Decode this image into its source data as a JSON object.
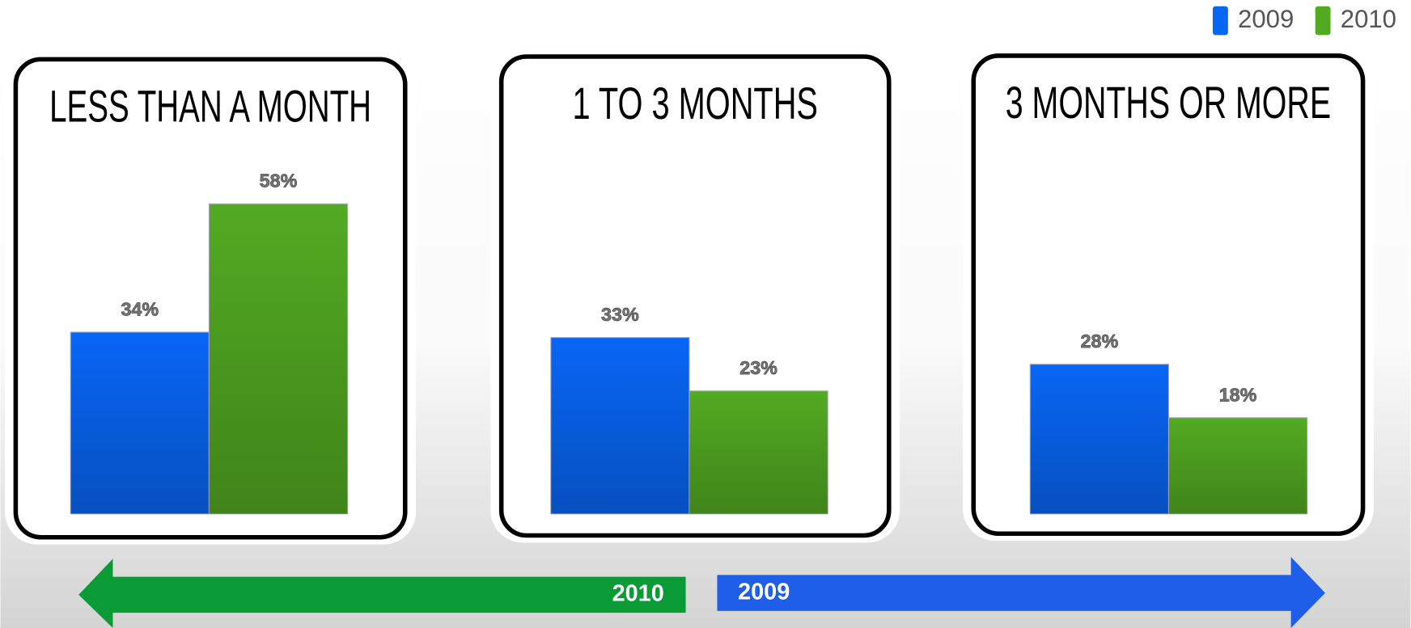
{
  "chart_data": {
    "type": "bar",
    "categories": [
      "LESS THAN A MONTH",
      "1 TO 3 MONTHS",
      "3 MONTHS OR MORE"
    ],
    "series": [
      {
        "name": "2009",
        "color": "#0866f5",
        "values": [
          34,
          33,
          28
        ],
        "value_labels": [
          "34%",
          "33%",
          "28%"
        ]
      },
      {
        "name": "2010",
        "color": "#52aa22",
        "values": [
          58,
          23,
          18
        ],
        "value_labels": [
          "58%",
          "23%",
          "18%"
        ]
      }
    ],
    "annotations": [
      "2010",
      "2009"
    ]
  }
}
